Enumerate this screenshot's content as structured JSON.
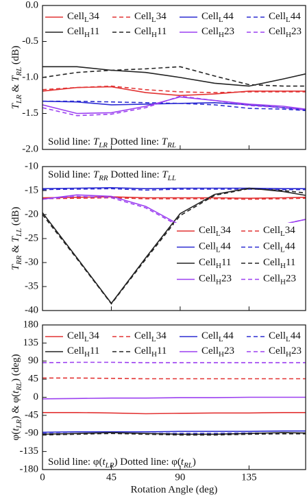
{
  "chart_data": [
    {
      "type": "line",
      "xlim": [
        0,
        172
      ],
      "xticks": [
        0,
        45,
        90,
        135
      ],
      "ylim": [
        -2,
        0
      ],
      "yticks": [
        {
          "value": 0,
          "label": "0.0"
        },
        -0.5,
        {
          "value": -1,
          "label": "-1.0"
        },
        -1.5,
        {
          "value": -2,
          "label": "-2.0"
        }
      ],
      "ylabel": [
        {
          "text": "T",
          "italic": true
        },
        {
          "text": "LR",
          "sub": true,
          "italic": true
        },
        {
          "text": " & "
        },
        {
          "text": "T",
          "italic": true
        },
        {
          "text": "RL",
          "sub": true,
          "italic": true
        },
        {
          "text": " (dB)"
        }
      ],
      "annotation": [
        {
          "text": "Solid line: "
        },
        {
          "text": "T",
          "italic": true
        },
        {
          "text": "LR",
          "sub": true,
          "italic": true
        },
        {
          "text": "  Dotted line: "
        },
        {
          "text": "T",
          "italic": true
        },
        {
          "text": "RL",
          "sub": true,
          "italic": true
        }
      ],
      "annotation_position": "bottom",
      "legend": "top",
      "x": [
        0,
        22.5,
        45,
        67.5,
        90,
        112.5,
        135,
        157.5,
        172
      ],
      "series": [
        {
          "name": "CellL34",
          "color": "#e23232",
          "dash": false,
          "values": [
            -1.19,
            -1.14,
            -1.13,
            -1.21,
            -1.25,
            -1.23,
            -1.19,
            -1.19,
            -1.19
          ]
        },
        {
          "name": "CellL34",
          "color": "#e23232",
          "dash": true,
          "values": [
            -1.17,
            -1.14,
            -1.12,
            -1.17,
            -1.2,
            -1.21,
            -1.2,
            -1.2,
            -1.2
          ]
        },
        {
          "name": "CellL44",
          "color": "#2b2bd2",
          "dash": false,
          "values": [
            -1.33,
            -1.34,
            -1.38,
            -1.37,
            -1.36,
            -1.35,
            -1.38,
            -1.42,
            -1.45
          ]
        },
        {
          "name": "CellL44",
          "color": "#2b2bd2",
          "dash": true,
          "values": [
            -1.33,
            -1.33,
            -1.34,
            -1.35,
            -1.36,
            -1.38,
            -1.43,
            -1.44,
            -1.46
          ]
        },
        {
          "name": "CellH11",
          "color": "#222222",
          "dash": false,
          "values": [
            -0.85,
            -0.85,
            -0.9,
            -0.93,
            -1.0,
            -1.08,
            -1.12,
            -1.02,
            -0.95
          ]
        },
        {
          "name": "CellH11",
          "color": "#222222",
          "dash": true,
          "values": [
            -1.0,
            -0.93,
            -0.9,
            -0.88,
            -0.85,
            -0.98,
            -1.1,
            -1.12,
            -1.12
          ]
        },
        {
          "name": "CellH23",
          "color": "#9b3ff0",
          "dash": false,
          "values": [
            -1.38,
            -1.5,
            -1.49,
            -1.4,
            -1.27,
            -1.32,
            -1.37,
            -1.4,
            -1.44
          ]
        },
        {
          "name": "CellH23",
          "color": "#9b3ff0",
          "dash": true,
          "values": [
            -1.42,
            -1.53,
            -1.51,
            -1.42,
            -1.26,
            -1.32,
            -1.39,
            -1.42,
            -1.45
          ]
        }
      ]
    },
    {
      "type": "line",
      "xlim": [
        0,
        172
      ],
      "xticks": [
        0,
        45,
        90,
        135
      ],
      "ylim": [
        -40,
        -10
      ],
      "yticks": [
        -10,
        -15,
        -20,
        -25,
        -30,
        -35,
        -40
      ],
      "ylabel": [
        {
          "text": "T",
          "italic": true
        },
        {
          "text": "RR",
          "sub": true,
          "italic": true
        },
        {
          "text": " & "
        },
        {
          "text": "T",
          "italic": true
        },
        {
          "text": "LL",
          "sub": true,
          "italic": true
        },
        {
          "text": " (dB)"
        }
      ],
      "annotation": [
        {
          "text": "Solid line: "
        },
        {
          "text": "T",
          "italic": true
        },
        {
          "text": "RR",
          "sub": true,
          "italic": true
        },
        {
          "text": "  Dotted line: "
        },
        {
          "text": "T",
          "italic": true
        },
        {
          "text": "LL",
          "sub": true,
          "italic": true
        }
      ],
      "annotation_position": "top",
      "legend": "lower right",
      "x": [
        0,
        22.5,
        45,
        67.5,
        90,
        112.5,
        135,
        157.5,
        172
      ],
      "series": [
        {
          "name": "CellL34",
          "color": "#e23232",
          "dash": false,
          "values": [
            -16.5,
            -16.4,
            -16.3,
            -16.5,
            -16.5,
            -16.5,
            -16.6,
            -16.5,
            -16.4
          ]
        },
        {
          "name": "CellL34",
          "color": "#e23232",
          "dash": true,
          "values": [
            -16.7,
            -16.6,
            -16.5,
            -16.7,
            -16.7,
            -16.7,
            -16.8,
            -16.7,
            -16.6
          ]
        },
        {
          "name": "CellL44",
          "color": "#2b2bd2",
          "dash": false,
          "values": [
            -14.6,
            -14.5,
            -14.4,
            -14.6,
            -14.5,
            -14.5,
            -14.5,
            -14.6,
            -14.6
          ]
        },
        {
          "name": "CellL44",
          "color": "#2b2bd2",
          "dash": true,
          "values": [
            -14.8,
            -14.7,
            -14.6,
            -14.9,
            -14.7,
            -14.7,
            -14.7,
            -14.8,
            -14.8
          ]
        },
        {
          "name": "CellH11",
          "color": "#222222",
          "dash": false,
          "values": [
            -19.6,
            -29,
            -38.5,
            -29,
            -19.8,
            -15.8,
            -14.5,
            -15.2,
            -16
          ]
        },
        {
          "name": "CellH11",
          "color": "#222222",
          "dash": true,
          "values": [
            -20,
            -29.2,
            -38.6,
            -29.3,
            -20.2,
            -16,
            -14.6,
            -15,
            -15.5
          ]
        },
        {
          "name": "CellH23",
          "color": "#9b3ff0",
          "dash": false,
          "values": [
            -16.8,
            -15.9,
            -16.2,
            -18.3,
            -22.2,
            -26,
            -25.2,
            -22,
            -21
          ]
        },
        {
          "name": "CellH23",
          "color": "#9b3ff0",
          "dash": true,
          "values": [
            -16.8,
            -16.2,
            -16.5,
            -18.6,
            -22.5,
            -26.2,
            -25,
            -22,
            -21
          ]
        }
      ]
    },
    {
      "type": "line",
      "xlim": [
        0,
        172
      ],
      "xticks": [
        0,
        45,
        90,
        135
      ],
      "xlabel": "Rotation Angle (deg)",
      "ylim": [
        -180,
        180
      ],
      "yticks": [
        180,
        135,
        90,
        45,
        0,
        -45,
        -90,
        -135,
        -180
      ],
      "ylabel": [
        {
          "text": "φ("
        },
        {
          "text": "t",
          "italic": true
        },
        {
          "text": "LR",
          "sub": true,
          "italic": true
        },
        {
          "text": ") & φ("
        },
        {
          "text": "t",
          "italic": true
        },
        {
          "text": "RL",
          "sub": true,
          "italic": true
        },
        {
          "text": ") (deg)"
        }
      ],
      "annotation": [
        {
          "text": "Solid line: φ("
        },
        {
          "text": "t",
          "italic": true
        },
        {
          "text": "LR",
          "sub": true,
          "italic": true
        },
        {
          "text": ")  Dotted line: φ("
        },
        {
          "text": "t",
          "italic": true
        },
        {
          "text": "RL",
          "sub": true,
          "italic": true
        },
        {
          "text": ")"
        }
      ],
      "annotation_position": "bottom",
      "legend": "top",
      "x": [
        0,
        22.5,
        45,
        67.5,
        90,
        112.5,
        135,
        157.5,
        172
      ],
      "series": [
        {
          "name": "CellL34",
          "color": "#e23232",
          "dash": false,
          "values": [
            -38,
            -38,
            -39,
            -41,
            -40,
            -39,
            -39,
            -38,
            -38
          ]
        },
        {
          "name": "CellL34",
          "color": "#e23232",
          "dash": true,
          "values": [
            48,
            48,
            47,
            46,
            46,
            46,
            46,
            46,
            46
          ]
        },
        {
          "name": "CellL44",
          "color": "#2b2bd2",
          "dash": false,
          "values": [
            -87,
            -86,
            -86,
            -86,
            -85,
            -85,
            -85,
            -84,
            -84
          ]
        },
        {
          "name": "CellL44",
          "color": "#2b2bd2",
          "dash": true,
          "values": [
            -90,
            -90,
            -89,
            -90,
            -90,
            -90,
            -89,
            -89,
            -89
          ]
        },
        {
          "name": "CellH11",
          "color": "#222222",
          "dash": false,
          "values": [
            -92,
            -90,
            -88,
            -90,
            -92,
            -92,
            -90,
            -88,
            -89
          ]
        },
        {
          "name": "CellH11",
          "color": "#222222",
          "dash": true,
          "values": [
            -94,
            -92,
            -90,
            -92,
            -94,
            -94,
            -92,
            -91,
            -91
          ]
        },
        {
          "name": "CellH23",
          "color": "#9b3ff0",
          "dash": false,
          "values": [
            -4,
            -3,
            -2,
            -2,
            -1,
            -1,
            0,
            0,
            0
          ]
        },
        {
          "name": "CellH23",
          "color": "#9b3ff0",
          "dash": true,
          "values": [
            86,
            87,
            87,
            86,
            86,
            86,
            86,
            86,
            86
          ]
        }
      ]
    }
  ]
}
